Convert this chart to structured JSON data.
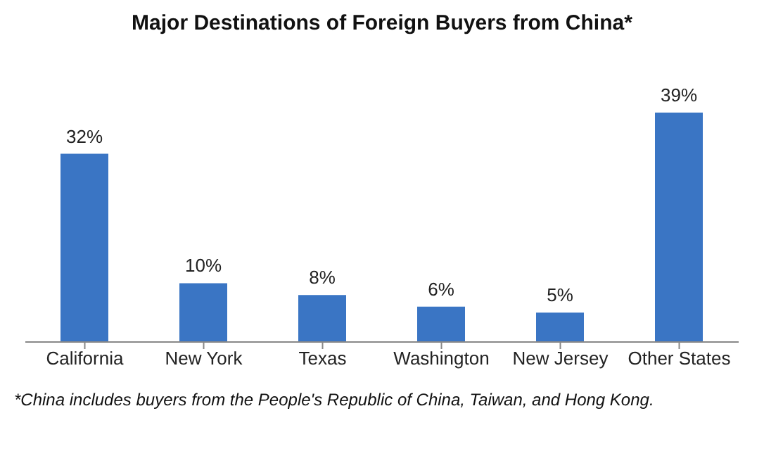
{
  "chart_data": {
    "type": "bar",
    "title": "Major Destinations of Foreign Buyers from China*",
    "categories": [
      "California",
      "New York",
      "Texas",
      "Washington",
      "New Jersey",
      "Other States"
    ],
    "values": [
      32,
      10,
      8,
      6,
      5,
      39
    ],
    "value_labels": [
      "32%",
      "10%",
      "8%",
      "6%",
      "5%",
      "39%"
    ],
    "color": "#3a75c4",
    "annotations": [
      "*China includes buyers from the People's Republic of China, Taiwan, and Hong Kong."
    ]
  }
}
